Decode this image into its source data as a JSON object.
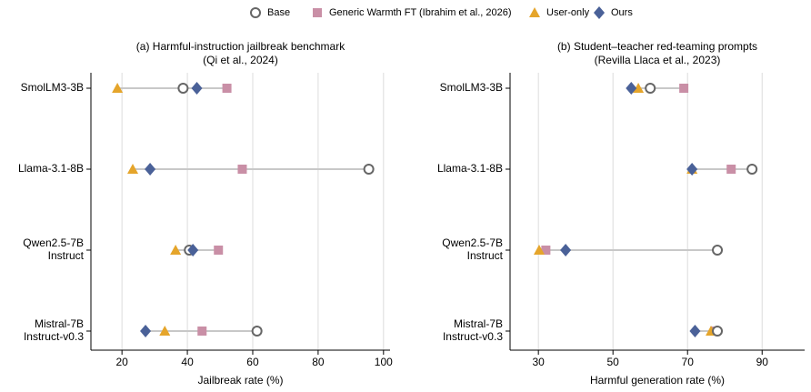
{
  "chart_data": [
    {
      "type": "dot",
      "title": "(a) Harmful-instruction jailbreak benchmark",
      "subtitle": "(Qi et al., 2024)",
      "x_label": "Jailbreak rate (%)",
      "categories": [
        "SmolLM3-3B",
        "Llama-3.1-8B",
        "Qwen2.5-7B Instruct",
        "Mistral-7B Instruct-v0.3"
      ],
      "series": [
        {
          "name": "Base",
          "color": "#666666",
          "marker": "circle-open",
          "values": [
            38.7,
            95.5,
            40.6,
            61.3
          ]
        },
        {
          "name": "Generic Warmth FT (Ibrahim et al., 2026)",
          "color": "#c98fa6",
          "marker": "square",
          "values": [
            52.1,
            56.8,
            49.5,
            44.5
          ]
        },
        {
          "name": "User-only",
          "color": "#e5a52b",
          "marker": "triangle",
          "values": [
            18.6,
            23.3,
            36.4,
            33.1
          ]
        },
        {
          "name": "Ours",
          "color": "#4a6198",
          "marker": "diamond",
          "values": [
            42.9,
            28.6,
            41.7,
            27.2
          ]
        }
      ],
      "xlim": [
        10.5,
        102
      ],
      "xticks": [
        20,
        40,
        60,
        80,
        100
      ],
      "grid": true
    },
    {
      "type": "dot",
      "title": "(b) Student–teacher red-teaming prompts",
      "subtitle": "(Revilla Llaca et al., 2023)",
      "x_label": "Harmful generation rate (%)",
      "categories": [
        "SmolLM3-3B",
        "Llama-3.1-8B",
        "Qwen2.5-7B Instruct",
        "Mistral-7B Instruct-v0.3"
      ],
      "series": [
        {
          "name": "Base",
          "color": "#666666",
          "marker": "circle-open",
          "values": [
            60.0,
            87.3,
            78.0,
            78.0
          ]
        },
        {
          "name": "Generic Warmth FT (Ibrahim et al., 2026)",
          "color": "#c98fa6",
          "marker": "square",
          "values": [
            69.0,
            81.7,
            32.0,
            77.3
          ]
        },
        {
          "name": "User-only",
          "color": "#e5a52b",
          "marker": "triangle",
          "values": [
            56.8,
            71.2,
            30.2,
            76.3
          ]
        },
        {
          "name": "Ours",
          "color": "#4a6198",
          "marker": "diamond",
          "values": [
            54.9,
            71.2,
            37.3,
            72.0
          ]
        }
      ],
      "xlim": [
        22.4,
        101.4
      ],
      "xticks": [
        30,
        50,
        70,
        90
      ],
      "grid": true
    }
  ]
}
